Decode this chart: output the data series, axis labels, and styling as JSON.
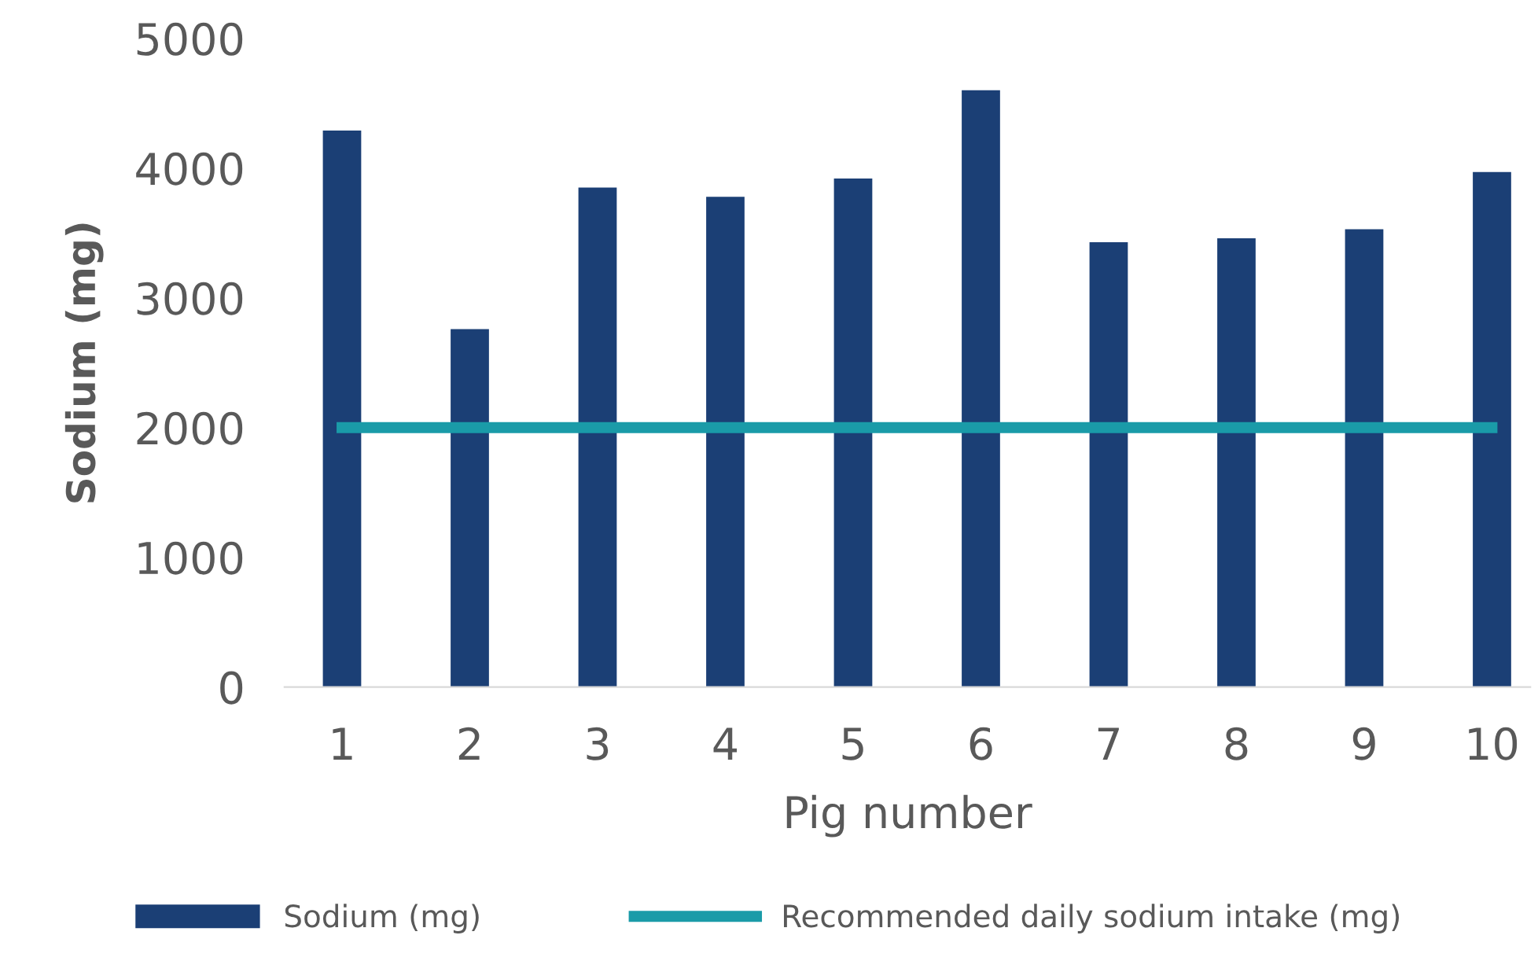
{
  "chart_data": {
    "type": "bar",
    "xlabel": "Pig number",
    "ylabel": "Sodium (mg)",
    "categories": [
      "1",
      "2",
      "3",
      "4",
      "5",
      "6",
      "7",
      "8",
      "9",
      "10"
    ],
    "series": [
      {
        "name": "Sodium (mg)",
        "color": "#1b3f75",
        "values": [
          4290,
          2760,
          3850,
          3780,
          3920,
          4600,
          3430,
          3460,
          3530,
          3970
        ]
      },
      {
        "name": "Recommended daily sodium intake (mg)",
        "type": "line",
        "color": "#1a9ba8",
        "values": [
          2000,
          2000,
          2000,
          2000,
          2000,
          2000,
          2000,
          2000,
          2000,
          2000
        ]
      }
    ],
    "ylim": [
      0,
      5000
    ],
    "yticks": [
      0,
      1000,
      2000,
      3000,
      4000,
      5000
    ],
    "grid": false,
    "legend": "bottom"
  }
}
